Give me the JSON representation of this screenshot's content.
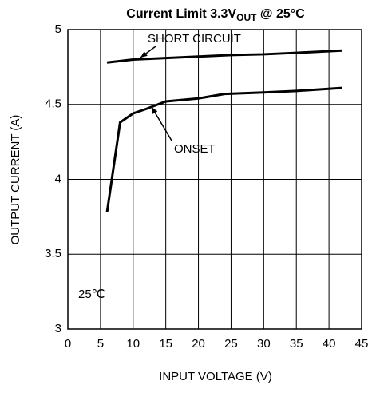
{
  "chart_data": {
    "type": "line",
    "title_parts": [
      "Current Limit 3.3V",
      "OUT",
      " @ 25°C"
    ],
    "x_label": "INPUT VOLTAGE (V)",
    "y_label": "OUTPUT CURRENT (A)",
    "xlim": [
      0,
      45
    ],
    "xticks": [
      0,
      5,
      10,
      15,
      20,
      25,
      30,
      35,
      40,
      45
    ],
    "ylim": [
      3,
      5
    ],
    "yticks": [
      3,
      3.5,
      4,
      4.5,
      5
    ],
    "grid": true,
    "series": [
      {
        "name": "SHORT CIRCUIT",
        "color": "#000000",
        "x": [
          6,
          8,
          10,
          15,
          20,
          25,
          30,
          35,
          42
        ],
        "values": [
          4.78,
          4.79,
          4.8,
          4.81,
          4.82,
          4.83,
          4.835,
          4.845,
          4.86
        ]
      },
      {
        "name": "ONSET",
        "color": "#000000",
        "x": [
          6,
          8,
          10,
          12,
          15,
          20,
          24,
          30,
          35,
          42
        ],
        "values": [
          3.78,
          4.38,
          4.44,
          4.47,
          4.52,
          4.54,
          4.57,
          4.58,
          4.59,
          4.61
        ]
      }
    ],
    "annotations": [
      "25℃"
    ]
  }
}
